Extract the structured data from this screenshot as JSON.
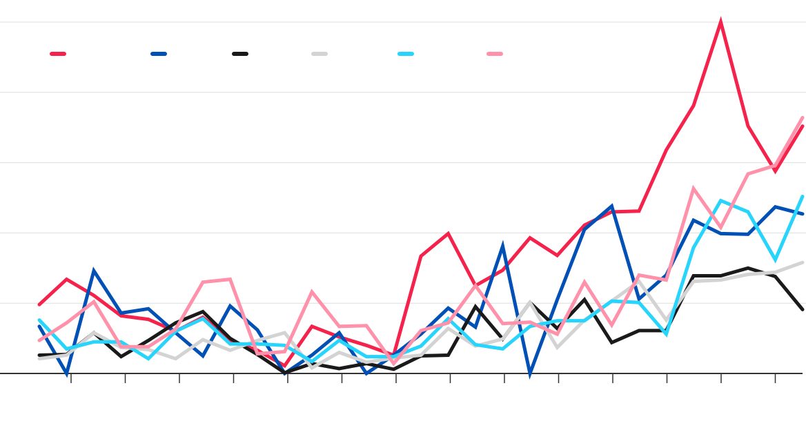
{
  "chart_data": {
    "type": "line",
    "title": "",
    "xlabel": "",
    "ylabel": "",
    "ylim": [
      0,
      5
    ],
    "grid": true,
    "legend_placement": "top-left",
    "x": [
      0,
      1,
      2,
      3,
      4,
      5,
      6,
      7,
      8,
      9,
      10,
      11,
      12,
      13,
      14,
      15,
      16,
      17,
      18,
      19,
      20,
      21,
      22,
      23,
      24,
      25,
      26,
      27,
      28
    ],
    "series": [
      {
        "color": "#f5224b",
        "values": [
          0.98,
          1.34,
          1.11,
          0.82,
          0.77,
          0.6,
          0.8,
          0.47,
          0.33,
          0.11,
          0.67,
          0.52,
          0.4,
          0.26,
          1.67,
          1.99,
          1.25,
          1.47,
          1.93,
          1.68,
          2.11,
          2.3,
          2.31,
          3.18,
          3.81,
          5.0,
          3.52,
          2.88,
          3.52
        ]
      },
      {
        "color": "#0050b5",
        "values": [
          0.67,
          0.0,
          1.46,
          0.86,
          0.92,
          0.58,
          0.25,
          0.96,
          0.62,
          0.0,
          0.26,
          0.58,
          0.0,
          0.26,
          0.56,
          0.93,
          0.66,
          1.81,
          0.0,
          1.05,
          2.05,
          2.38,
          1.06,
          1.4,
          2.18,
          1.99,
          1.98,
          2.37,
          2.27
        ]
      },
      {
        "color": "#1a1a1a",
        "values": [
          0.26,
          0.27,
          0.58,
          0.24,
          0.47,
          0.72,
          0.88,
          0.5,
          0.27,
          0.01,
          0.14,
          0.07,
          0.14,
          0.06,
          0.25,
          0.26,
          0.95,
          0.49,
          1.01,
          0.64,
          1.05,
          0.44,
          0.61,
          0.61,
          1.39,
          1.39,
          1.5,
          1.38,
          0.91
        ]
      },
      {
        "color": "#d3d3d3",
        "values": [
          0.21,
          0.26,
          0.58,
          0.37,
          0.34,
          0.21,
          0.48,
          0.33,
          0.47,
          0.58,
          0.08,
          0.3,
          0.16,
          0.22,
          0.26,
          0.64,
          0.39,
          0.49,
          1.01,
          0.37,
          0.76,
          1.03,
          1.31,
          0.76,
          1.31,
          1.33,
          1.41,
          1.44,
          1.58
        ]
      },
      {
        "color": "#27d4fb",
        "values": [
          0.76,
          0.35,
          0.45,
          0.45,
          0.21,
          0.6,
          0.78,
          0.42,
          0.42,
          0.4,
          0.17,
          0.47,
          0.24,
          0.24,
          0.39,
          0.78,
          0.41,
          0.35,
          0.67,
          0.75,
          0.75,
          1.03,
          1.01,
          0.56,
          1.79,
          2.46,
          2.3,
          1.62,
          2.52
        ]
      },
      {
        "color": "#ff91aa",
        "values": [
          0.47,
          0.72,
          1.02,
          0.38,
          0.38,
          0.63,
          1.3,
          1.34,
          0.28,
          0.31,
          1.16,
          0.67,
          0.68,
          0.14,
          0.61,
          0.72,
          1.25,
          0.71,
          0.73,
          0.56,
          1.3,
          0.69,
          1.4,
          1.33,
          2.63,
          2.08,
          2.84,
          2.96,
          3.64
        ]
      }
    ]
  }
}
